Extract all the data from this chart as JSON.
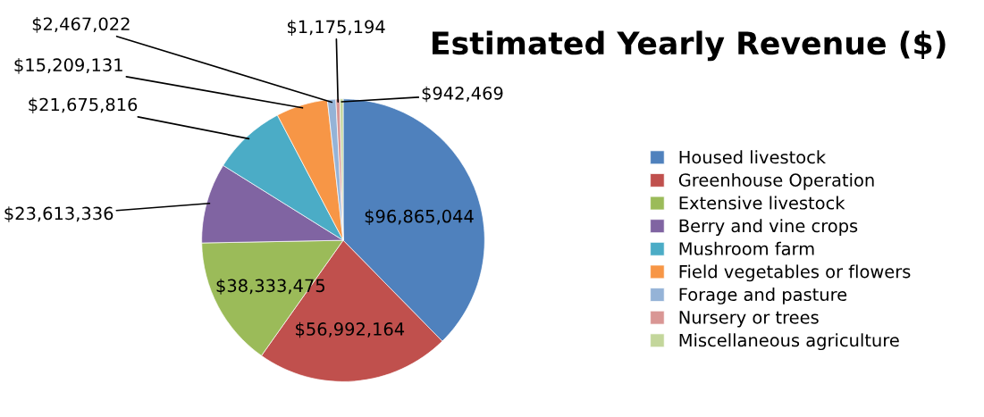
{
  "chart_data": {
    "type": "pie",
    "title": "Estimated Yearly Revenue ($)",
    "categories": [
      "Housed livestock",
      "Greenhouse Operation",
      "Extensive livestock",
      "Berry and vine crops",
      "Mushroom farm",
      "Field vegetables or flowers",
      "Forage and pasture",
      "Nursery or trees",
      "Miscellaneous agriculture"
    ],
    "values": [
      96865044,
      56992164,
      38333475,
      23613336,
      21675816,
      15209131,
      2467022,
      1175194,
      942469
    ],
    "value_labels": [
      "$96,865,044",
      "$56,992,164",
      "$38,333,475",
      "$23,613,336",
      "$21,675,816",
      "$15,209,131",
      "$2,467,022",
      "$1,175,194",
      "$942,469"
    ],
    "colors": [
      "#4f81bd",
      "#c0504d",
      "#9bbb59",
      "#8064a2",
      "#4bacc6",
      "#f79646",
      "#95b3d7",
      "#d99694",
      "#c3d69b"
    ],
    "legend": "right"
  }
}
